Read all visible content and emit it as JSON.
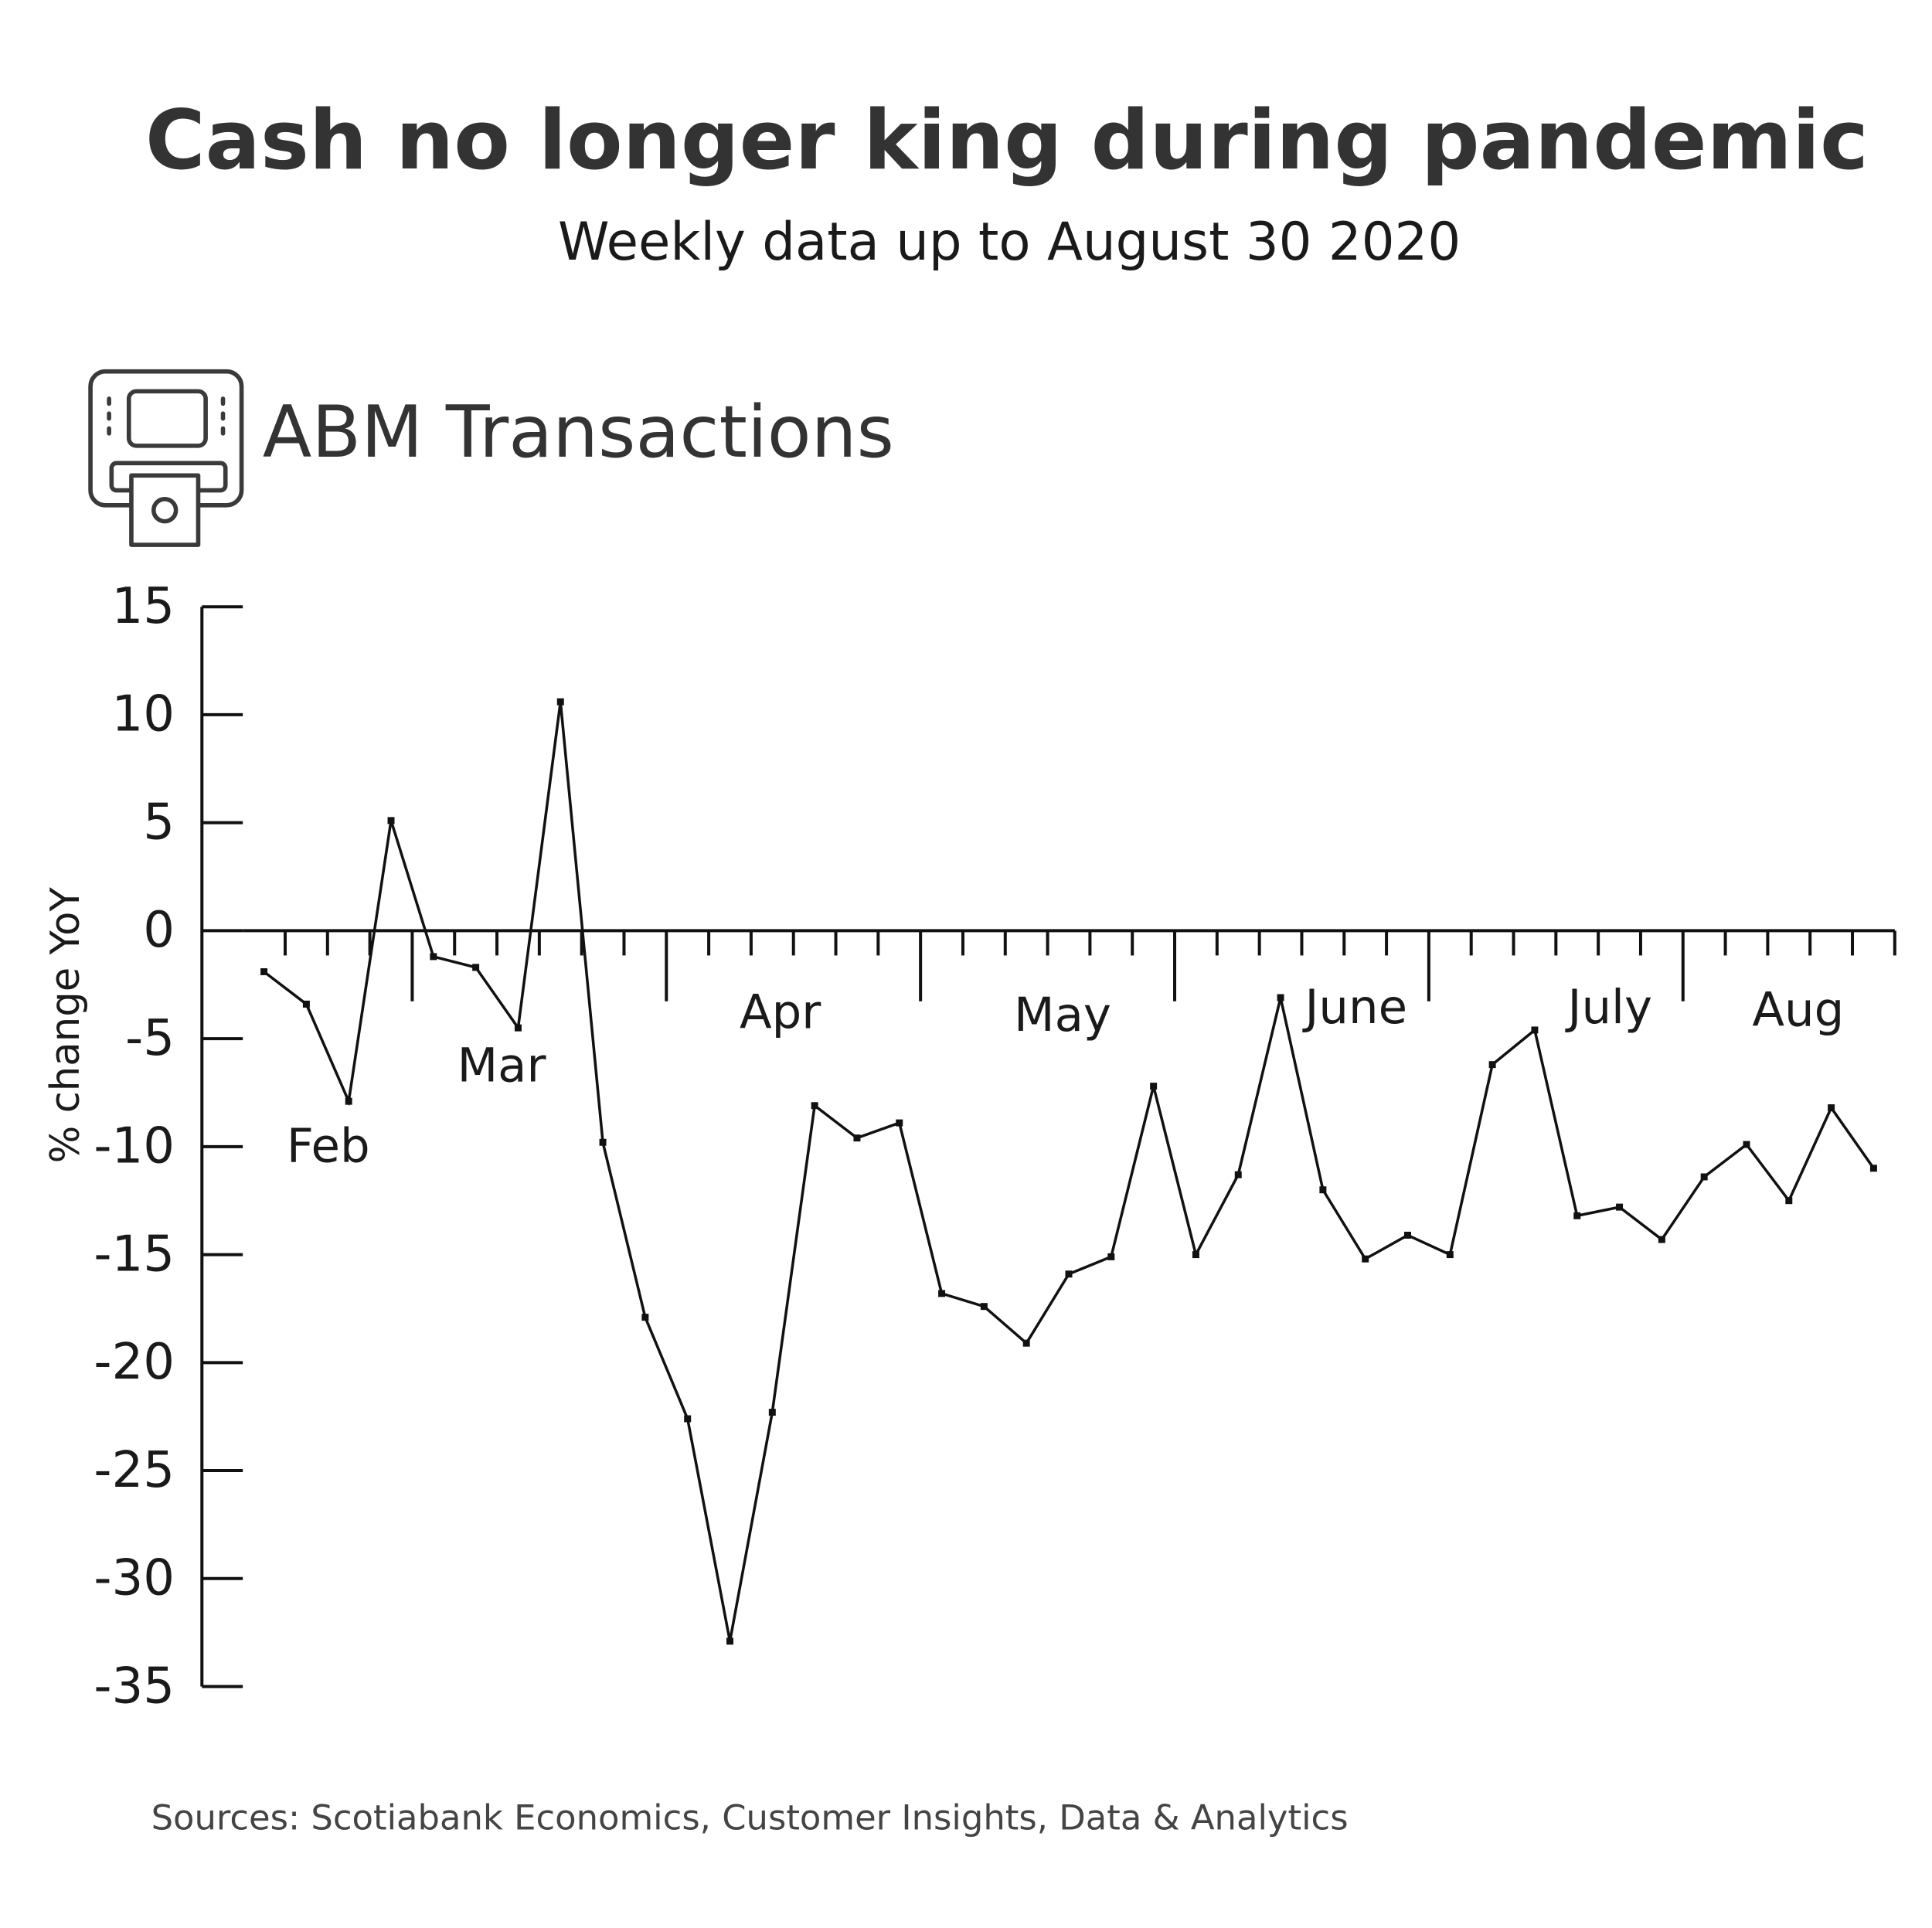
{
  "chart_data": {
    "type": "line",
    "title": "Cash no longer king during pandemic",
    "subtitle": "Weekly data up to August 30 2020",
    "panel_title": "ABM Transactions",
    "y_label": "% change YoY",
    "source": "Sources: Scotiabank Economics, Customer Insights, Data & Analytics",
    "categories": [
      null,
      "Feb",
      null,
      null,
      null,
      "Mar",
      null,
      null,
      null,
      null,
      null,
      null,
      "Apr",
      null,
      null,
      null,
      null,
      null,
      "May",
      null,
      null,
      null,
      null,
      null,
      null,
      "June",
      null,
      null,
      null,
      null,
      null,
      "July",
      null,
      null,
      null,
      null,
      "Aug",
      null,
      null
    ],
    "series": [
      {
        "name": "ABM Transactions",
        "color": "#111111",
        "values": [
          -1.9,
          -3.4,
          -7.9,
          5.1,
          -1.2,
          -1.7,
          -4.5,
          10.6,
          -9.8,
          -17.9,
          -22.6,
          -32.9,
          -22.3,
          -8.1,
          -9.6,
          -8.9,
          -16.8,
          -17.4,
          -19.1,
          -15.9,
          -15.1,
          -7.2,
          -15.0,
          -11.3,
          -3.1,
          -12.0,
          -15.2,
          -14.1,
          -15.0,
          -6.2,
          -4.6,
          -13.2,
          -12.8,
          -14.3,
          -11.4,
          -9.9,
          -12.5,
          -8.2,
          -11.0
        ]
      }
    ],
    "ylim": [
      -35,
      15
    ],
    "yticks": [
      15,
      10,
      5,
      0,
      -5,
      -10,
      -15,
      -20,
      -25,
      -30,
      -35
    ]
  }
}
